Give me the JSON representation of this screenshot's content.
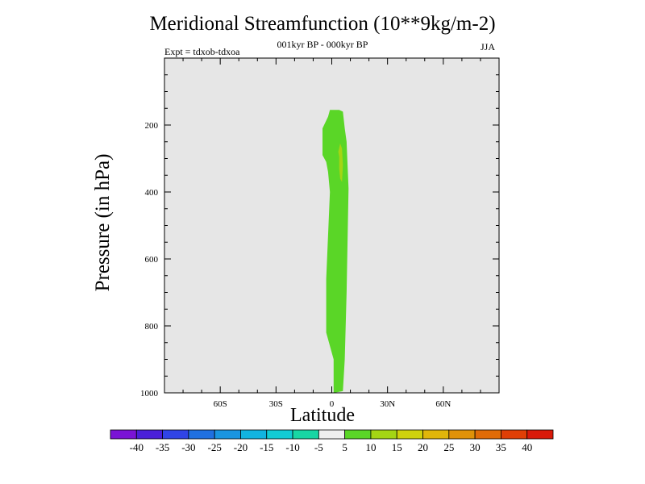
{
  "chart_data": {
    "type": "contour",
    "title": "Meridional Streamfunction (10**9kg/m-2)",
    "subtitle": "001kyr BP - 000kyr BP",
    "experiment": "Expt = tdxob-tdxoa",
    "season": "JJA",
    "xlabel": "Latitude",
    "ylabel": "Pressure (in hPa)",
    "xlim": [
      -90,
      90
    ],
    "ylim": [
      1000,
      0
    ],
    "x_ticks": [
      {
        "value": -60,
        "label": "60S"
      },
      {
        "value": -30,
        "label": "30S"
      },
      {
        "value": 0,
        "label": "0"
      },
      {
        "value": 30,
        "label": "30N"
      },
      {
        "value": 60,
        "label": "60N"
      }
    ],
    "y_ticks": [
      {
        "value": 200,
        "label": "200"
      },
      {
        "value": 400,
        "label": "400"
      },
      {
        "value": 600,
        "label": "600"
      },
      {
        "value": 800,
        "label": "800"
      },
      {
        "value": 1000,
        "label": "1000"
      }
    ],
    "background_color": "#e6e6e6",
    "contours": [
      {
        "level_range": [
          5,
          10
        ],
        "color": "#5ad627",
        "outline": [
          [
            1,
            1000
          ],
          [
            1,
            900
          ],
          [
            -3,
            820
          ],
          [
            -3,
            660
          ],
          [
            -1,
            400
          ],
          [
            -2,
            340
          ],
          [
            -3,
            310
          ],
          [
            -5,
            290
          ],
          [
            -5,
            250
          ],
          [
            -5,
            210
          ],
          [
            -2,
            175
          ],
          [
            -1,
            155
          ],
          [
            4,
            155
          ],
          [
            6,
            160
          ],
          [
            7,
            210
          ],
          [
            8,
            250
          ],
          [
            9,
            390
          ],
          [
            8,
            700
          ],
          [
            7,
            900
          ],
          [
            6,
            995
          ]
        ]
      },
      {
        "level_range": [
          10,
          15
        ],
        "color": "#a4d514",
        "outline": [
          [
            4,
            295
          ],
          [
            3.5,
            280
          ],
          [
            4.5,
            255
          ],
          [
            5.5,
            270
          ],
          [
            6,
            320
          ],
          [
            5.5,
            370
          ],
          [
            4.5,
            360
          ],
          [
            4,
            330
          ]
        ]
      }
    ],
    "colorbar": {
      "labels": [
        "-40",
        "-35",
        "-30",
        "-25",
        "-20",
        "-15",
        "-10",
        "-5",
        "5",
        "10",
        "15",
        "20",
        "25",
        "30",
        "35",
        "40"
      ],
      "colors": [
        "#7a13d6",
        "#4a1fd9",
        "#3044e6",
        "#2070e0",
        "#1a95e0",
        "#12b4e0",
        "#12ccd4",
        "#18d6a4",
        "#efefef",
        "#5ad627",
        "#a4d514",
        "#cfd10c",
        "#e0b60a",
        "#e09208",
        "#e06b07",
        "#e03f06",
        "#d91a0a"
      ]
    }
  }
}
